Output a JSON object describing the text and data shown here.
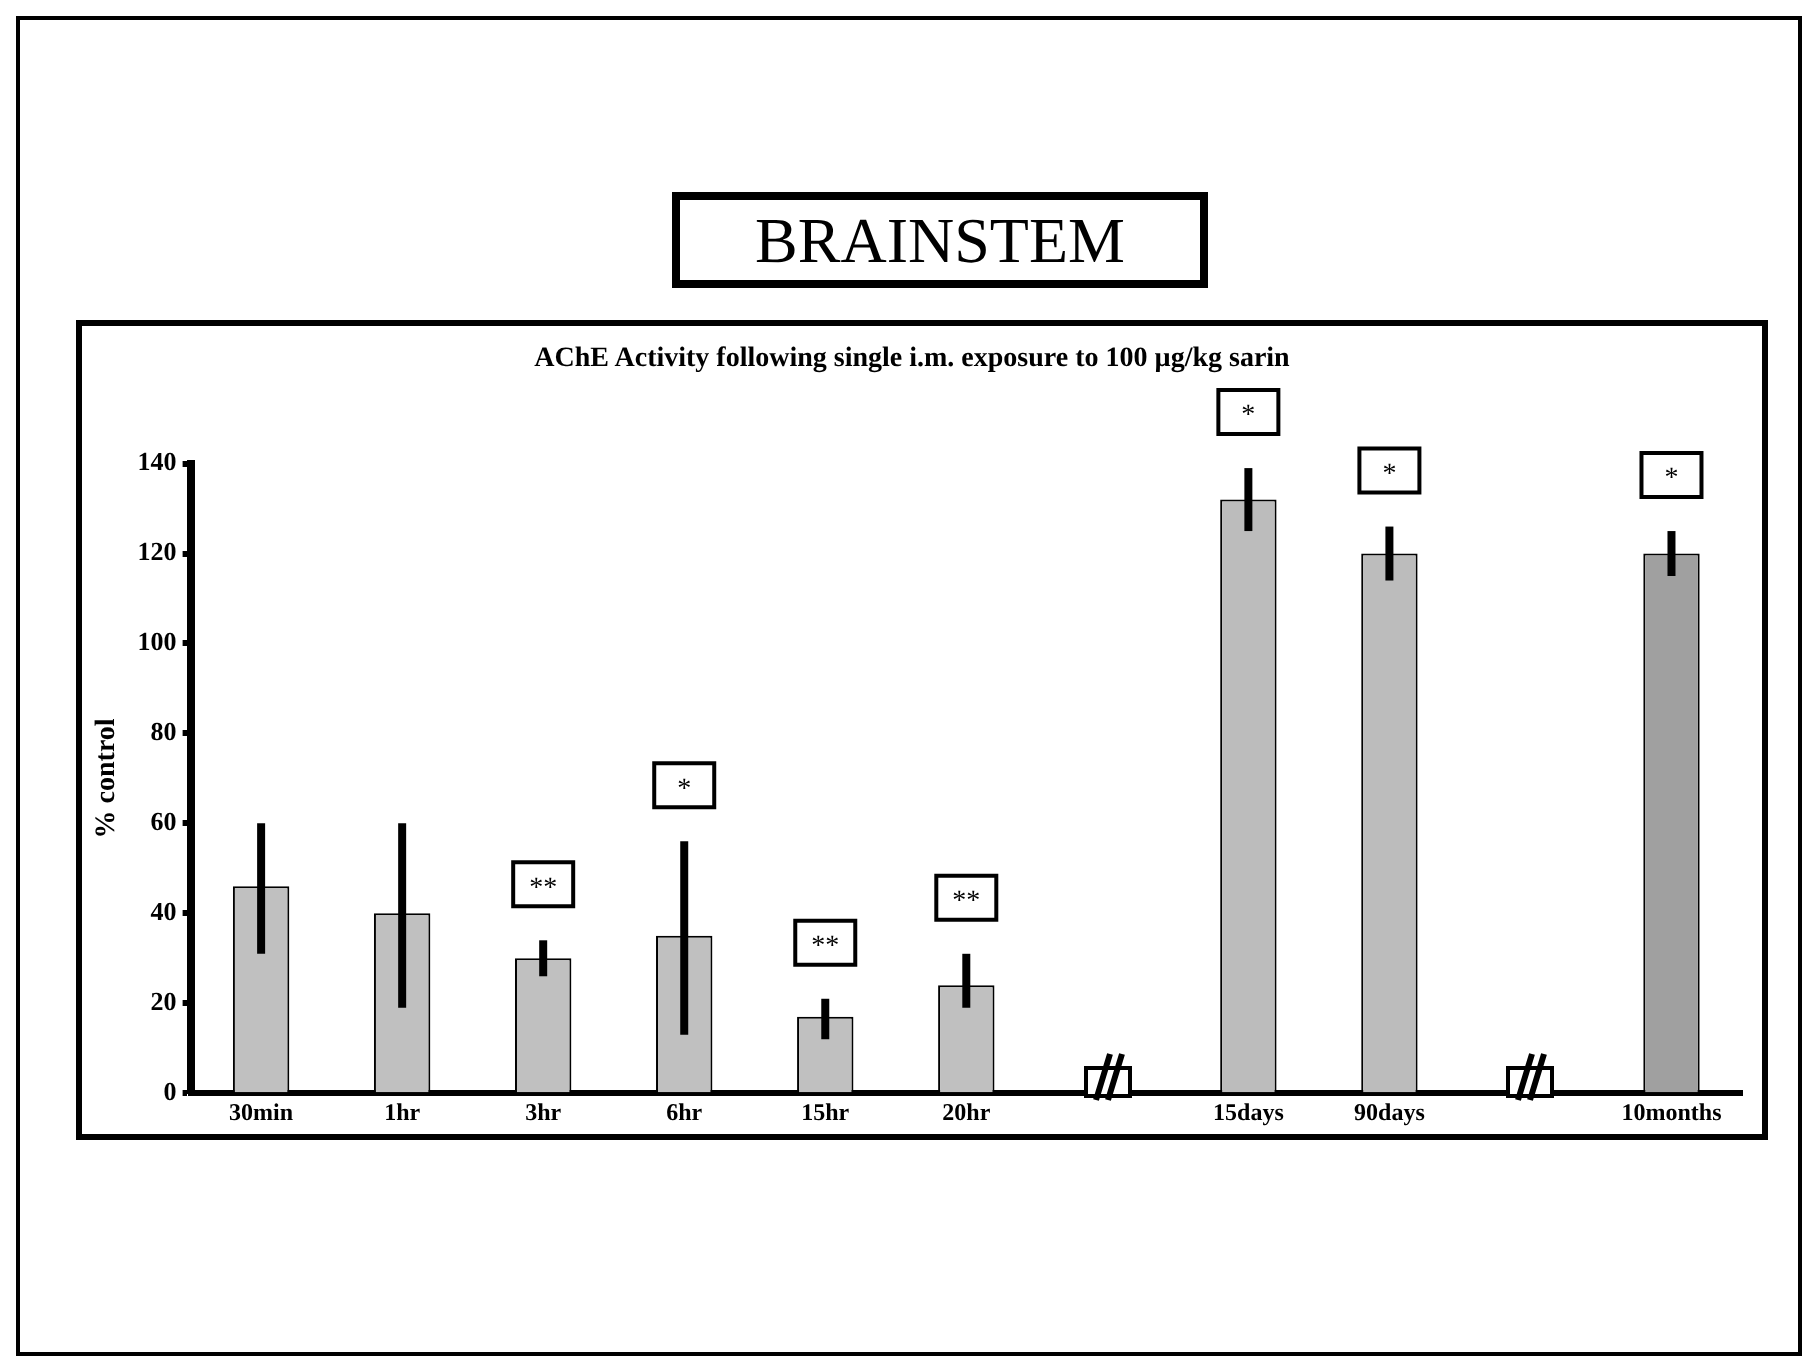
{
  "chart_data": {
    "type": "bar",
    "title": "BRAINSTEM",
    "subtitle": "AChE Activity following single i.m. exposure to 100 µg/kg sarin",
    "ylabel": "% control",
    "categories": [
      "30min",
      "1hr",
      "3hr",
      "6hr",
      "15hr",
      "20hr",
      null,
      "15days",
      "90days",
      null,
      "10months"
    ],
    "values": [
      46,
      40,
      30,
      35,
      17,
      24,
      null,
      132,
      120,
      null,
      120
    ],
    "colors": [
      "#c0c0c0",
      "#c0c0c0",
      "#c0c0c0",
      "#c0c0c0",
      "#c0c0c0",
      "#c0c0c0",
      "#c0c0c0",
      "#bcbcbc",
      "#bcbcbc",
      "#c0c0c0",
      "#a0a0a0"
    ],
    "errors": [
      [
        31,
        60
      ],
      [
        19,
        60
      ],
      [
        26,
        34
      ],
      [
        13,
        56
      ],
      [
        12,
        21
      ],
      [
        19,
        31
      ],
      null,
      [
        125,
        139
      ],
      [
        114,
        126
      ],
      null,
      [
        115,
        125
      ]
    ],
    "ylim": [
      0,
      140
    ],
    "yticks": [
      0,
      20,
      40,
      60,
      80,
      100,
      120,
      140
    ],
    "grid": false,
    "legend": false,
    "annotations": [
      {
        "text": "**",
        "x": "3hr",
        "y": 30
      },
      {
        "text": "*",
        "x": "6hr",
        "y": 56
      },
      {
        "text": "**",
        "x": "15hr",
        "y": 17
      },
      {
        "text": "**",
        "x": "20hr",
        "y": 24
      },
      {
        "text": "*",
        "x": "15days",
        "y": 132
      },
      {
        "text": "*",
        "x": "90days",
        "y": 120
      },
      {
        "text": "*",
        "x": "10months",
        "y": 120
      }
    ]
  }
}
